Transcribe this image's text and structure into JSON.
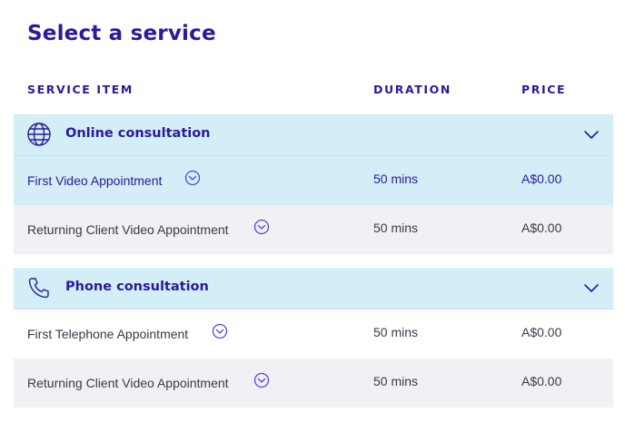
{
  "page": {
    "title": "Select a service"
  },
  "table": {
    "headers": {
      "service": "SERVICE ITEM",
      "duration": "DURATION",
      "price": "PRICE"
    }
  },
  "groups": [
    {
      "title": "Online consultation",
      "icon": "globe-icon",
      "expanded": true,
      "items": [
        {
          "name": "First Video Appointment",
          "duration": "50 mins",
          "price": "A$0.00",
          "selected": true
        },
        {
          "name": "Returning Client Video Appointment",
          "duration": "50 mins",
          "price": "A$0.00",
          "selected": false
        }
      ]
    },
    {
      "title": "Phone consultation",
      "icon": "phone-icon",
      "expanded": true,
      "items": [
        {
          "name": "First Telephone Appointment",
          "duration": "50 mins",
          "price": "A$0.00",
          "selected": false
        },
        {
          "name": "Returning Client Video Appointment",
          "duration": "50 mins",
          "price": "A$0.00",
          "selected": false
        }
      ]
    }
  ],
  "colors": {
    "accent": "#2a1a9e",
    "header_bg": "#d3eef6",
    "selected_bg": "#d3eef6",
    "alt_row_bg": "#f1f0f5",
    "info_icon": "#5a47d6"
  }
}
